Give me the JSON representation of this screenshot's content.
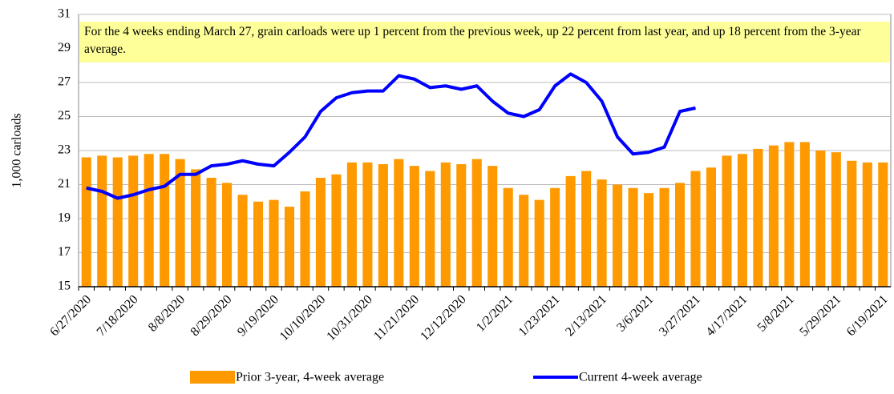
{
  "chart_data": {
    "type": "bar_line",
    "annotation": "For the 4 weeks ending March 27, grain carloads were up 1 percent from the previous week, up 22 percent from last year, and up 18 percent from the 3-year average.",
    "y_label": "1,000 carloads",
    "categories": [
      "6/27/2020",
      null,
      null,
      "7/18/2020",
      null,
      null,
      "8/8/2020",
      null,
      null,
      "8/29/2020",
      null,
      null,
      "9/19/2020",
      null,
      null,
      "10/10/2020",
      null,
      null,
      "10/31/2020",
      null,
      null,
      "11/21/2020",
      null,
      null,
      "12/12/2020",
      null,
      null,
      "1/2/2021",
      null,
      null,
      "1/23/2021",
      null,
      null,
      "2/13/2021",
      null,
      null,
      "3/6/2021",
      null,
      null,
      "3/27/2021",
      null,
      null,
      "4/17/2021",
      null,
      null,
      "5/8/2021",
      null,
      null,
      "5/29/2021",
      null,
      null,
      "6/19/2021"
    ],
    "series": [
      {
        "name": "Prior 3-year, 4-week average",
        "kind": "bar",
        "color": "#ff9900",
        "values": [
          22.6,
          22.7,
          22.6,
          22.7,
          22.8,
          22.8,
          22.5,
          21.9,
          21.4,
          21.1,
          20.4,
          20.0,
          20.1,
          19.7,
          20.6,
          21.4,
          21.6,
          22.3,
          22.3,
          22.2,
          22.5,
          22.1,
          21.8,
          22.3,
          22.2,
          22.5,
          22.1,
          20.8,
          20.4,
          20.1,
          20.8,
          21.5,
          21.8,
          21.3,
          21.0,
          20.8,
          20.5,
          20.8,
          21.1,
          21.8,
          22.0,
          22.7,
          22.8,
          23.1,
          23.3,
          23.5,
          23.5,
          23.0,
          22.9,
          22.4,
          22.3,
          22.3
        ]
      },
      {
        "name": "Current 4-week average",
        "kind": "line",
        "color": "#0000ff",
        "values": [
          20.8,
          20.6,
          20.2,
          20.4,
          20.7,
          20.9,
          21.6,
          21.6,
          22.1,
          22.2,
          22.4,
          22.2,
          22.1,
          22.9,
          23.8,
          25.3,
          26.1,
          26.4,
          26.5,
          26.5,
          27.4,
          27.2,
          26.7,
          26.8,
          26.6,
          26.8,
          25.9,
          25.2,
          25.0,
          25.4,
          26.8,
          27.5,
          27.0,
          25.9,
          23.8,
          22.8,
          22.9,
          23.2,
          25.3,
          25.5,
          null,
          null,
          null,
          null,
          null,
          null,
          null,
          null,
          null,
          null,
          null,
          null
        ]
      }
    ],
    "ylim": [
      15,
      31
    ],
    "yticks": [
      15,
      17,
      19,
      21,
      23,
      25,
      27,
      29,
      31
    ],
    "grid": true,
    "annotation_color": "#ffff99"
  }
}
